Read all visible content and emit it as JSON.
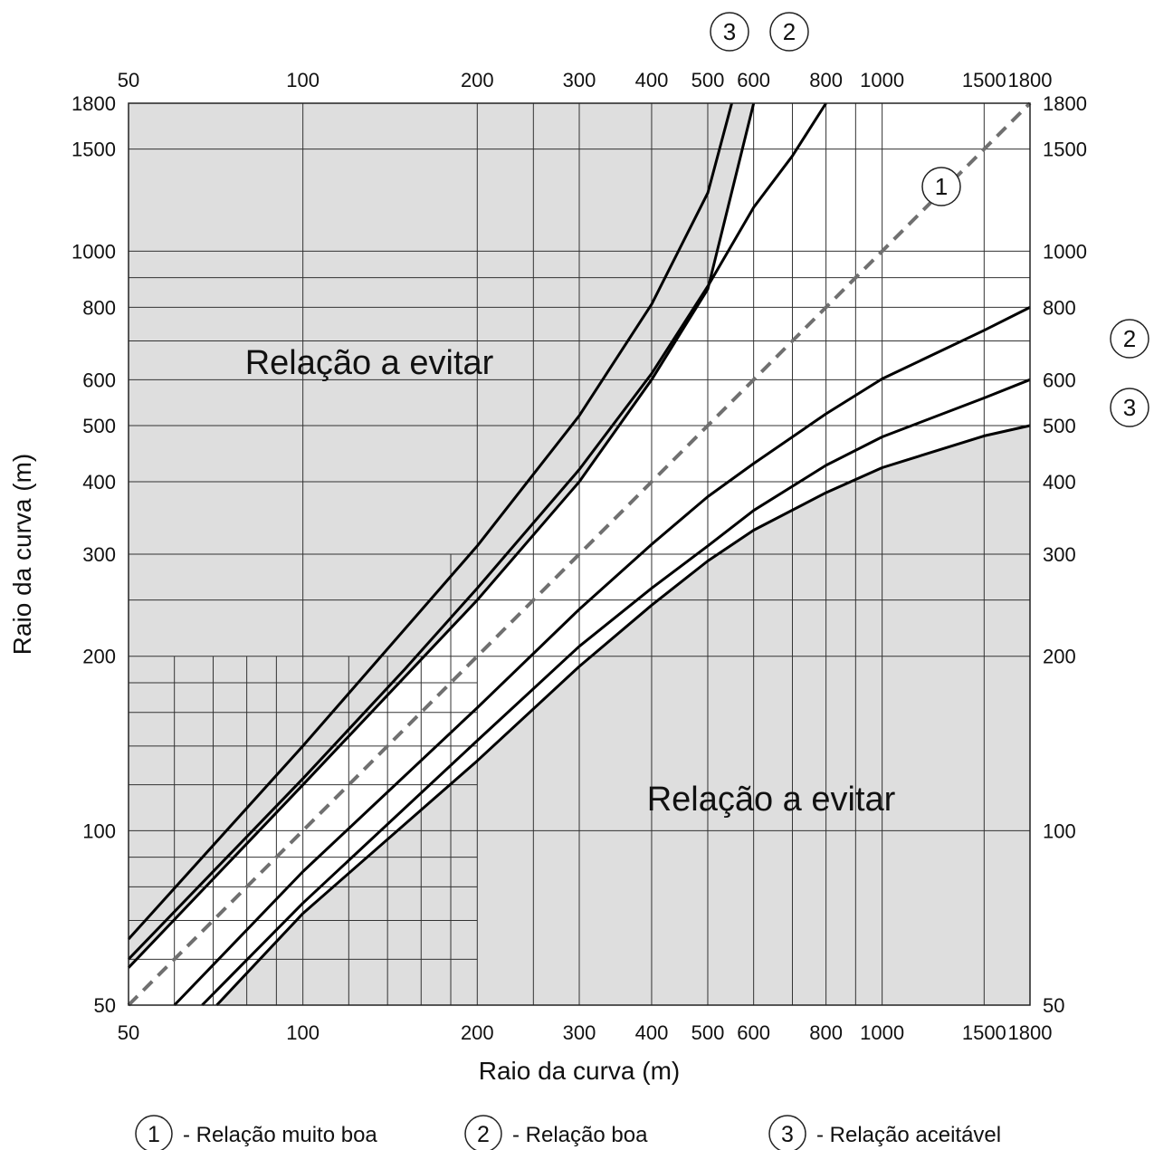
{
  "chart_data": {
    "type": "line",
    "x_scale": "log",
    "y_scale": "log",
    "xlim": [
      50,
      1800
    ],
    "ylim": [
      50,
      1800
    ],
    "x_ticks": [
      50,
      100,
      200,
      300,
      400,
      500,
      600,
      800,
      1000,
      1500,
      1800
    ],
    "y_ticks": [
      50,
      100,
      200,
      300,
      400,
      500,
      600,
      800,
      1000,
      1500,
      1800
    ],
    "xlabel": "Raio da curva (m)",
    "ylabel": "Raio da curva (m)",
    "region_label": "Relação a evitar",
    "grid": true,
    "series": [
      {
        "name": "1",
        "style": "dashed",
        "color": "#707070",
        "x": [
          50,
          100,
          200,
          500,
          1000,
          1800
        ],
        "y": [
          50,
          100,
          200,
          500,
          1000,
          1800
        ]
      },
      {
        "name": "2",
        "bound": "upper",
        "color": "#000000",
        "x": [
          50,
          100,
          150,
          200,
          300,
          400,
          500,
          600,
          700,
          800
        ],
        "y": [
          60,
          123,
          190,
          262,
          420,
          615,
          870,
          1190,
          1460,
          1800
        ]
      },
      {
        "name": "2",
        "bound": "lower",
        "color": "#000000",
        "x": [
          60,
          100,
          200,
          300,
          400,
          500,
          600,
          800,
          1000,
          1500,
          1800
        ],
        "y": [
          50,
          85,
          163,
          241,
          312,
          377,
          430,
          524,
          602,
          730,
          800
        ]
      },
      {
        "name": "3",
        "bound": "upper",
        "color": "#000000",
        "x": [
          50,
          100,
          200,
          300,
          400,
          500,
          550
        ],
        "y": [
          65,
          140,
          310,
          520,
          810,
          1260,
          1800
        ]
      },
      {
        "name": "3",
        "bound": "lower",
        "color": "#000000",
        "x": [
          67,
          100,
          200,
          300,
          400,
          500,
          600,
          800,
          1000,
          1500,
          1800
        ],
        "y": [
          50,
          75,
          143,
          208,
          262,
          310,
          357,
          427,
          478,
          558,
          600
        ]
      },
      {
        "name": "",
        "bound": "outer-upper",
        "color": "#000000",
        "x": [
          50,
          100,
          200,
          300,
          400,
          500,
          600
        ],
        "y": [
          58,
          120,
          250,
          400,
          600,
          860,
          1800
        ]
      },
      {
        "name": "",
        "bound": "outer-lower",
        "color": "#000000",
        "x": [
          71,
          100,
          200,
          300,
          400,
          500,
          600,
          800,
          1000,
          1500,
          1800
        ],
        "y": [
          50,
          72,
          132,
          192,
          245,
          292,
          330,
          383,
          423,
          480,
          500
        ]
      }
    ],
    "markers": {
      "top": [
        "3",
        "2"
      ],
      "right": [
        "2",
        "3"
      ],
      "line1": "1"
    },
    "legend": [
      {
        "marker": "1",
        "text": "- Relação muito boa"
      },
      {
        "marker": "2",
        "text": "- Relação boa"
      },
      {
        "marker": "3",
        "text": "- Relação aceitável"
      }
    ]
  }
}
